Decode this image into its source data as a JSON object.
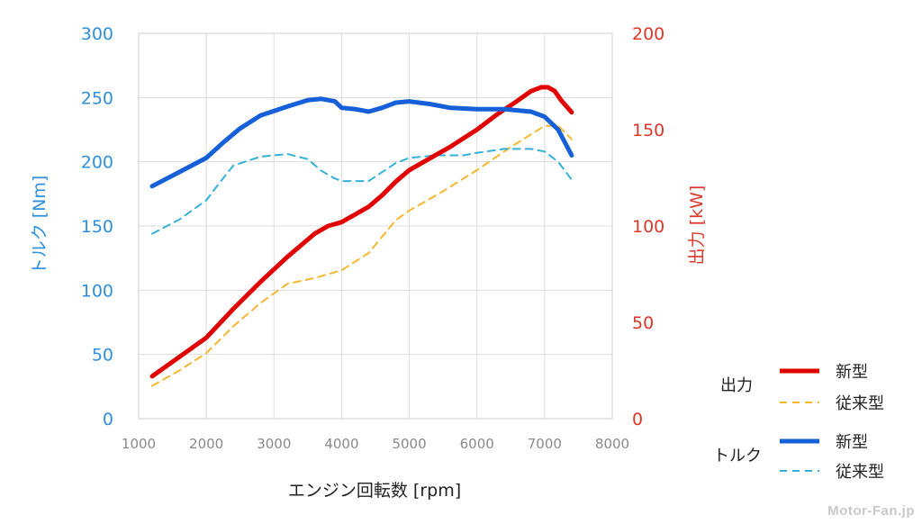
{
  "chart_data": {
    "type": "line",
    "xlabel": "エンジン回転数 [rpm]",
    "ylabel_left": "トルク [Nm]",
    "ylabel_right": "出力 [kW]",
    "xlim": [
      1000,
      8000
    ],
    "ylim_left": [
      0,
      300
    ],
    "ylim_right": [
      0,
      200
    ],
    "x_ticks": [
      "1000",
      "2000",
      "3000",
      "4000",
      "5000",
      "6000",
      "7000",
      "8000"
    ],
    "y_ticks_left": [
      "0",
      "50",
      "100",
      "150",
      "200",
      "250",
      "300"
    ],
    "y_ticks_right": [
      "0",
      "50",
      "100",
      "150",
      "200"
    ],
    "grid": true,
    "series": [
      {
        "name": "新型",
        "group": "出力",
        "axis": "right",
        "color": "#e00000",
        "style": "solid",
        "x": [
          1200,
          1600,
          2000,
          2400,
          2800,
          3200,
          3600,
          3800,
          3900,
          4000,
          4200,
          4400,
          4600,
          4800,
          5000,
          5300,
          5600,
          6000,
          6300,
          6600,
          6800,
          6950,
          7050,
          7150,
          7250,
          7400
        ],
        "y": [
          22,
          32,
          42,
          57,
          71,
          84,
          96,
          100,
          101,
          102,
          106,
          110,
          116,
          123,
          129,
          135,
          141,
          150,
          158,
          165,
          170,
          172,
          172,
          170,
          165,
          159
        ]
      },
      {
        "name": "従来型",
        "group": "出力",
        "axis": "right",
        "color": "#f5b731",
        "style": "dashed",
        "x": [
          1200,
          1600,
          2000,
          2400,
          2800,
          3200,
          3600,
          4000,
          4400,
          4800,
          5000,
          5500,
          6000,
          6500,
          7000,
          7200,
          7400
        ],
        "y": [
          17,
          25,
          34,
          48,
          60,
          70,
          73,
          77,
          86,
          103,
          108,
          118,
          129,
          141,
          152,
          152,
          145
        ]
      },
      {
        "name": "新型",
        "group": "トルク",
        "axis": "left",
        "color": "#1560d8",
        "style": "solid",
        "x": [
          1200,
          1600,
          2000,
          2250,
          2500,
          2800,
          3200,
          3500,
          3700,
          3900,
          4000,
          4200,
          4400,
          4600,
          4800,
          5000,
          5300,
          5600,
          6000,
          6400,
          6800,
          7000,
          7200,
          7400
        ],
        "y": [
          181,
          192,
          203,
          215,
          226,
          236,
          243,
          248,
          249,
          247,
          242,
          241,
          239,
          242,
          246,
          247,
          245,
          242,
          241,
          241,
          239,
          235,
          225,
          205
        ]
      },
      {
        "name": "従来型",
        "group": "トルク",
        "axis": "left",
        "color": "#33b2d6",
        "style": "dashed",
        "x": [
          1200,
          1600,
          2000,
          2200,
          2400,
          2800,
          3200,
          3500,
          3700,
          3900,
          4000,
          4200,
          4400,
          4600,
          4800,
          5000,
          5400,
          5800,
          6000,
          6400,
          6800,
          7000,
          7200,
          7400
        ],
        "y": [
          144,
          155,
          170,
          184,
          197,
          204,
          206,
          202,
          193,
          187,
          185,
          185,
          185,
          192,
          199,
          203,
          205,
          205,
          207,
          210,
          210,
          208,
          200,
          186
        ]
      }
    ],
    "legend": {
      "placement": "bottom-right",
      "groups": [
        {
          "label": "出力",
          "items": [
            {
              "label": "新型"
            },
            {
              "label": "従来型"
            }
          ]
        },
        {
          "label": "トルク",
          "items": [
            {
              "label": "新型"
            },
            {
              "label": "従来型"
            }
          ]
        }
      ]
    }
  },
  "watermark": "Motor-Fan.jp"
}
